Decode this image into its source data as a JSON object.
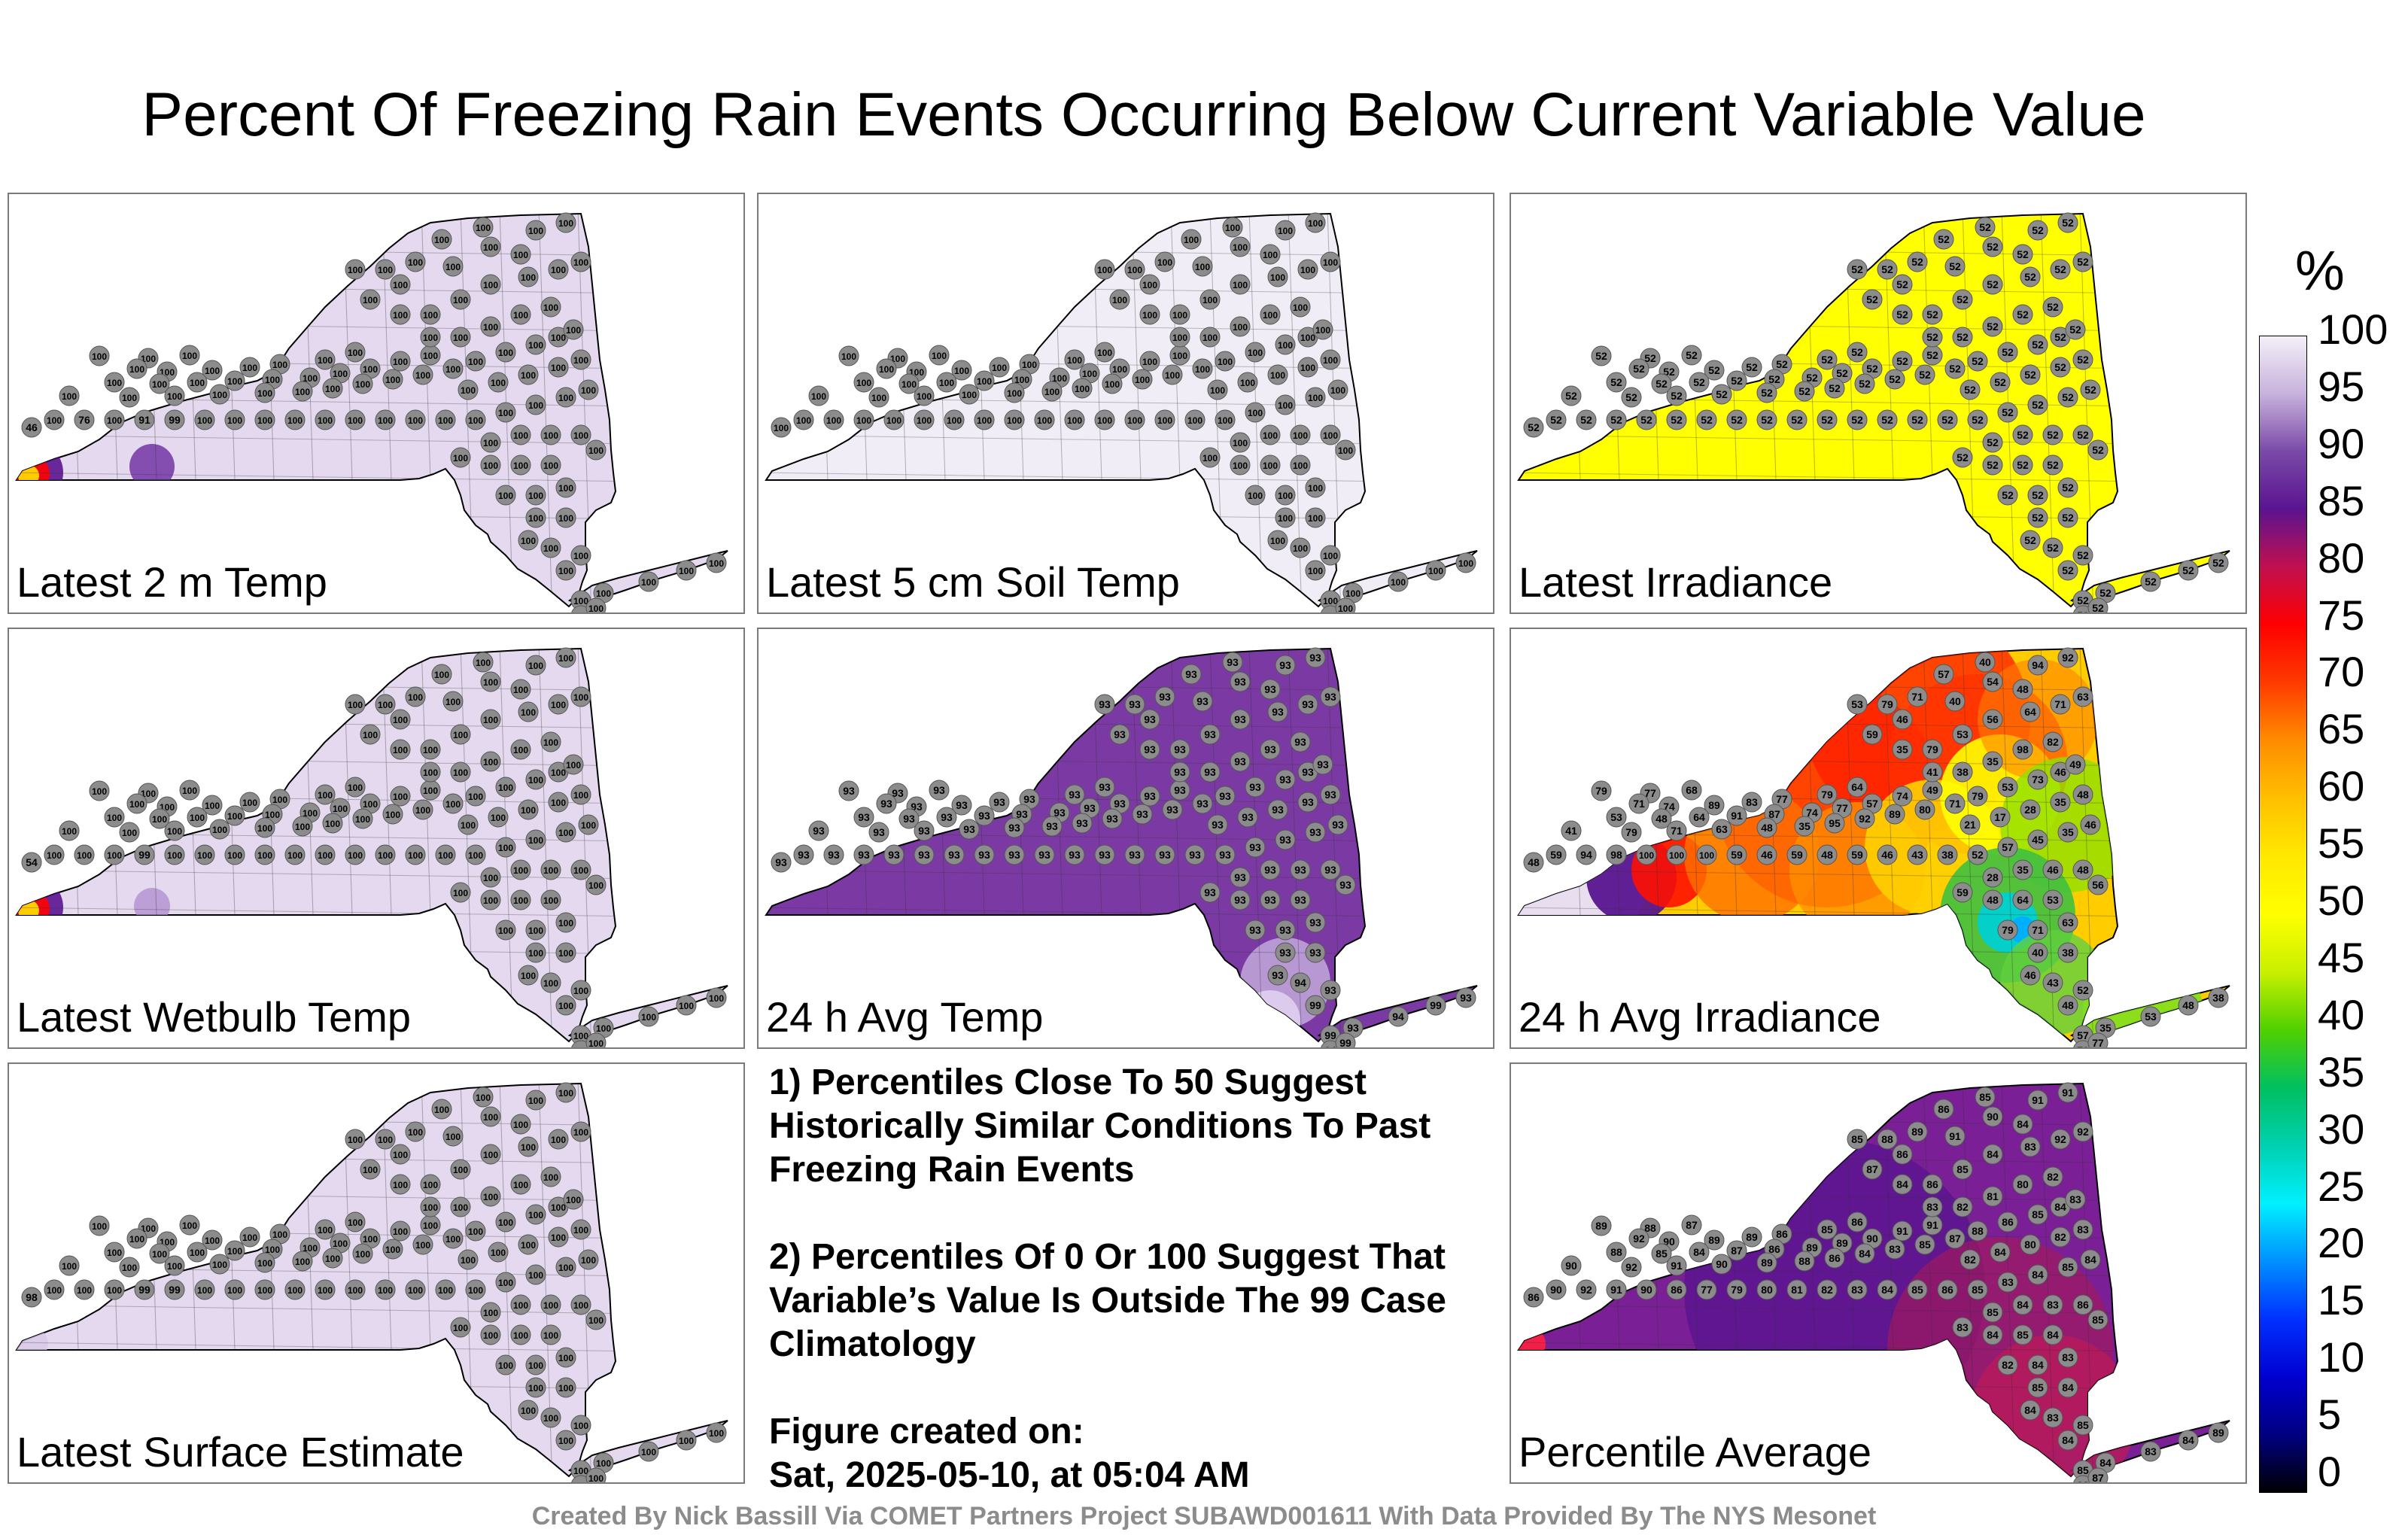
{
  "title": "Percent Of Freezing Rain Events Occurring Below Current Variable Value",
  "colorbar": {
    "unit": "%",
    "ticks": [
      "100",
      "95",
      "90",
      "85",
      "80",
      "75",
      "70",
      "65",
      "60",
      "55",
      "50",
      "45",
      "40",
      "35",
      "30",
      "25",
      "20",
      "15",
      "10",
      "5",
      "0"
    ]
  },
  "panels": [
    {
      "label": "Latest 2 m Temp",
      "fill": "#e4d9ee",
      "mode": "t2m",
      "stations": "100 (most stations); 91, 91, 76, 46, 99 in western NY"
    },
    {
      "label": "Latest 5 cm Soil Temp",
      "fill": "#f1edf6",
      "mode": "uniform",
      "stations": "100 at all stations"
    },
    {
      "label": "Latest Irradiance",
      "fill": "#ffff00",
      "mode": "uniform",
      "stations": "52 at all stations"
    },
    {
      "label": "Latest Wetbulb Temp",
      "fill": "#e4d9ee",
      "mode": "wb",
      "stations": "100 (most stations); 99, 88, 54 in western NY"
    },
    {
      "label": "24 h Avg Temp",
      "fill": "#7b3aa3",
      "mode": "avgT",
      "stations": "93 (most stations); 94, 99 in southeast"
    },
    {
      "label": "24 h Avg Irradiance",
      "fill": "#ffcc00",
      "mode": "irr",
      "stations": "values 17–100"
    },
    {
      "label": "Latest Surface Estimate",
      "fill": "#e4d9ee",
      "mode": "surf",
      "stations": "100 (most stations); 98, 99 in west"
    },
    {
      "label": "Percentile Average",
      "fill": "#7a1f96",
      "mode": "avg",
      "stations": "values 77–92"
    }
  ],
  "notes": {
    "note1": "1) Percentiles Close To 50 Suggest Historically Similar Conditions To Past Freezing Rain Events",
    "note2": "2) Percentiles Of 0 Or 100 Suggest That Variable’s Value Is Outside The 99 Case Climatology",
    "created_label": "Figure created on:",
    "created_date": "Sat, 2025-05-10, at 05:04 AM"
  },
  "credit": "Created By Nick Bassill Via COMET Partners Project SUBAWD001611 With Data Provided By The NYS Mesonet"
}
